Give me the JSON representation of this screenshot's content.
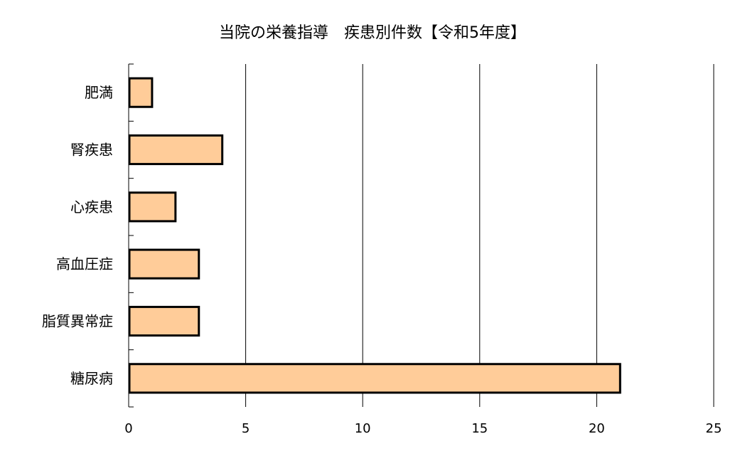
{
  "chart_data": {
    "type": "bar",
    "orientation": "horizontal",
    "title": "当院の栄養指導　疾患別件数【令和5年度】",
    "categories": [
      "肥満",
      "腎疾患",
      "心疾患",
      "高血圧症",
      "脂質異常症",
      "糖尿病"
    ],
    "values": [
      1,
      4,
      2,
      3,
      3,
      21
    ],
    "xlim": [
      0,
      25
    ],
    "x_ticks": [
      0,
      5,
      10,
      15,
      20,
      25
    ],
    "grid": "vertical",
    "bar_color": "#ffcc99",
    "bar_edge_color": "#000000",
    "legend": "none"
  }
}
